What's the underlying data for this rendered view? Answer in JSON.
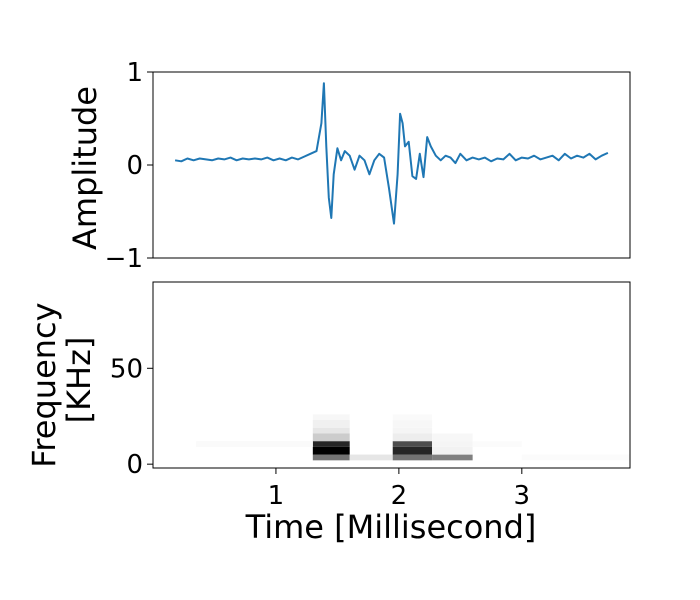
{
  "chart_data": [
    {
      "type": "line",
      "title": "",
      "xlabel": "",
      "ylabel": "Amplitude",
      "ylim": [
        -1,
        1
      ],
      "yticks": [
        1,
        0,
        -1
      ],
      "ytick_labels": [
        "1",
        "0",
        "−1"
      ],
      "xticks_shown": false,
      "grid": false,
      "series": [
        {
          "color": "#1f77b4",
          "x": [
            0.18,
            0.23,
            0.28,
            0.33,
            0.38,
            0.43,
            0.48,
            0.53,
            0.58,
            0.63,
            0.68,
            0.73,
            0.78,
            0.83,
            0.88,
            0.93,
            0.98,
            1.03,
            1.08,
            1.13,
            1.18,
            1.23,
            1.28,
            1.33,
            1.37,
            1.39,
            1.41,
            1.43,
            1.45,
            1.47,
            1.5,
            1.53,
            1.56,
            1.6,
            1.64,
            1.68,
            1.72,
            1.76,
            1.8,
            1.84,
            1.88,
            1.92,
            1.96,
            1.99,
            2.01,
            2.03,
            2.05,
            2.08,
            2.11,
            2.14,
            2.17,
            2.2,
            2.23,
            2.26,
            2.3,
            2.34,
            2.38,
            2.42,
            2.46,
            2.5,
            2.55,
            2.6,
            2.65,
            2.7,
            2.75,
            2.8,
            2.85,
            2.9,
            2.95,
            3.0,
            3.05,
            3.1,
            3.15,
            3.2,
            3.25,
            3.3,
            3.35,
            3.4,
            3.45,
            3.5,
            3.55,
            3.6,
            3.65,
            3.7
          ],
          "y": [
            0.05,
            0.04,
            0.07,
            0.05,
            0.07,
            0.06,
            0.05,
            0.07,
            0.06,
            0.08,
            0.05,
            0.07,
            0.06,
            0.07,
            0.06,
            0.08,
            0.05,
            0.07,
            0.05,
            0.08,
            0.06,
            0.09,
            0.12,
            0.15,
            0.45,
            0.88,
            0.2,
            -0.35,
            -0.57,
            -0.1,
            0.18,
            0.05,
            0.15,
            0.1,
            -0.05,
            0.1,
            0.05,
            -0.1,
            0.05,
            0.12,
            0.08,
            -0.25,
            -0.63,
            -0.1,
            0.55,
            0.45,
            0.2,
            0.25,
            -0.12,
            -0.15,
            0.12,
            -0.13,
            0.3,
            0.2,
            0.1,
            0.05,
            0.1,
            0.08,
            0.02,
            0.12,
            0.05,
            0.08,
            0.06,
            0.08,
            0.04,
            0.07,
            0.06,
            0.12,
            0.05,
            0.08,
            0.07,
            0.1,
            0.06,
            0.08,
            0.1,
            0.05,
            0.12,
            0.07,
            0.1,
            0.08,
            0.12,
            0.06,
            0.1,
            0.13
          ]
        }
      ]
    },
    {
      "type": "heatmap",
      "title": "",
      "xlabel": "Time [Millisecond]",
      "ylabel": "Frequency\n[KHz]",
      "ylabel_lines": [
        "Frequency",
        "[KHz]"
      ],
      "xlim": [
        0.0,
        3.88
      ],
      "ylim": [
        -2,
        95
      ],
      "xticks": [
        1,
        2,
        3
      ],
      "yticks": [
        0,
        50
      ],
      "colormap": "gray_r",
      "grid": false,
      "cells": [
        {
          "x0": 1.3,
          "x1": 1.6,
          "y0": 2,
          "y1": 5,
          "v": 0.55
        },
        {
          "x0": 1.3,
          "x1": 1.6,
          "y0": 5,
          "y1": 9,
          "v": 1.0
        },
        {
          "x0": 1.3,
          "x1": 1.6,
          "y0": 9,
          "y1": 12,
          "v": 0.85
        },
        {
          "x0": 1.3,
          "x1": 1.6,
          "y0": 12,
          "y1": 16,
          "v": 0.2
        },
        {
          "x0": 1.3,
          "x1": 1.6,
          "y0": 16,
          "y1": 19,
          "v": 0.1
        },
        {
          "x0": 1.3,
          "x1": 1.6,
          "y0": 19,
          "y1": 23,
          "v": 0.06
        },
        {
          "x0": 1.3,
          "x1": 1.6,
          "y0": 23,
          "y1": 26,
          "v": 0.03
        },
        {
          "x0": 1.6,
          "x1": 1.95,
          "y0": 2,
          "y1": 5,
          "v": 0.1
        },
        {
          "x0": 1.95,
          "x1": 2.27,
          "y0": 2,
          "y1": 5,
          "v": 0.55
        },
        {
          "x0": 1.95,
          "x1": 2.27,
          "y0": 5,
          "y1": 9,
          "v": 0.85
        },
        {
          "x0": 1.95,
          "x1": 2.27,
          "y0": 9,
          "y1": 12,
          "v": 0.7
        },
        {
          "x0": 1.95,
          "x1": 2.27,
          "y0": 12,
          "y1": 16,
          "v": 0.07
        },
        {
          "x0": 1.95,
          "x1": 2.27,
          "y0": 16,
          "y1": 19,
          "v": 0.04
        },
        {
          "x0": 1.95,
          "x1": 2.27,
          "y0": 19,
          "y1": 23,
          "v": 0.03
        },
        {
          "x0": 1.95,
          "x1": 2.27,
          "y0": 23,
          "y1": 26,
          "v": 0.02
        },
        {
          "x0": 2.27,
          "x1": 2.6,
          "y0": 2,
          "y1": 5,
          "v": 0.5
        },
        {
          "x0": 2.27,
          "x1": 2.6,
          "y0": 5,
          "y1": 9,
          "v": 0.05
        },
        {
          "x0": 2.27,
          "x1": 2.6,
          "y0": 9,
          "y1": 12,
          "v": 0.04
        },
        {
          "x0": 2.27,
          "x1": 2.6,
          "y0": 12,
          "y1": 16,
          "v": 0.03
        },
        {
          "x0": 0.35,
          "x1": 1.3,
          "y0": 9,
          "y1": 12,
          "v": 0.02
        },
        {
          "x0": 2.6,
          "x1": 3.0,
          "y0": 9,
          "y1": 12,
          "v": 0.015
        },
        {
          "x0": 3.0,
          "x1": 3.88,
          "y0": 2,
          "y1": 5,
          "v": 0.015
        }
      ]
    }
  ]
}
